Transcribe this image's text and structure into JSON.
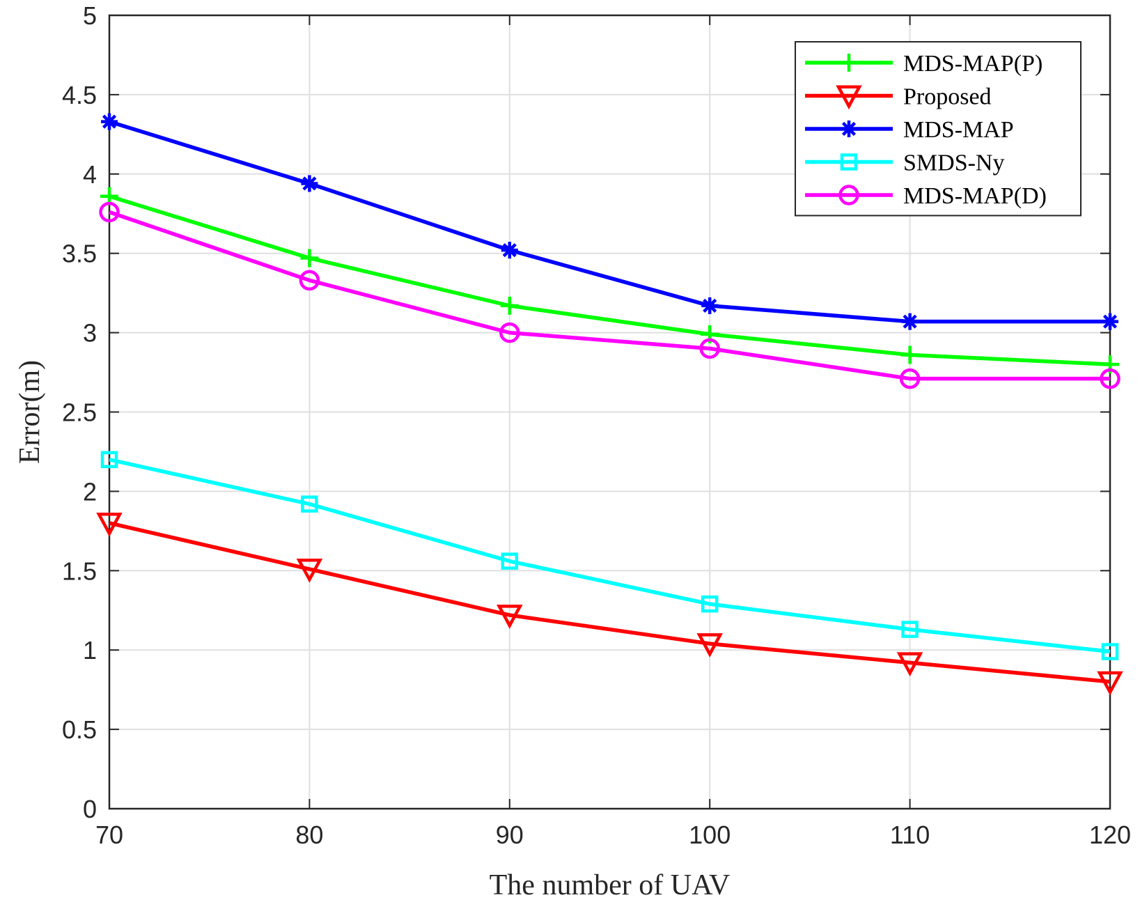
{
  "chart_data": {
    "type": "line",
    "title": "",
    "xlabel": "The number of UAV",
    "ylabel": "Error(m)",
    "x": [
      70,
      80,
      90,
      100,
      110,
      120
    ],
    "xlim": [
      70,
      120
    ],
    "ylim": [
      0,
      5
    ],
    "xticks": [
      70,
      80,
      90,
      100,
      110,
      120
    ],
    "yticks": [
      0,
      0.5,
      1,
      1.5,
      2,
      2.5,
      3,
      3.5,
      4,
      4.5,
      5
    ],
    "grid": true,
    "legend_position": "top-right",
    "series": [
      {
        "name": "MDS-MAP(P)",
        "color": "#00ff00",
        "marker": "plus",
        "values": [
          3.86,
          3.47,
          3.17,
          2.99,
          2.86,
          2.8
        ]
      },
      {
        "name": "Proposed",
        "color": "#ff0000",
        "marker": "triangle-down",
        "values": [
          1.8,
          1.51,
          1.22,
          1.04,
          0.92,
          0.8
        ]
      },
      {
        "name": "MDS-MAP",
        "color": "#0000ff",
        "marker": "asterisk",
        "values": [
          4.33,
          3.94,
          3.52,
          3.17,
          3.07,
          3.07
        ]
      },
      {
        "name": "SMDS-Ny",
        "color": "#00ffff",
        "marker": "square",
        "values": [
          2.2,
          1.92,
          1.56,
          1.29,
          1.13,
          0.99
        ]
      },
      {
        "name": "MDS-MAP(D)",
        "color": "#ff00ff",
        "marker": "circle",
        "values": [
          3.76,
          3.33,
          3.0,
          2.9,
          2.71,
          2.71
        ]
      }
    ]
  }
}
